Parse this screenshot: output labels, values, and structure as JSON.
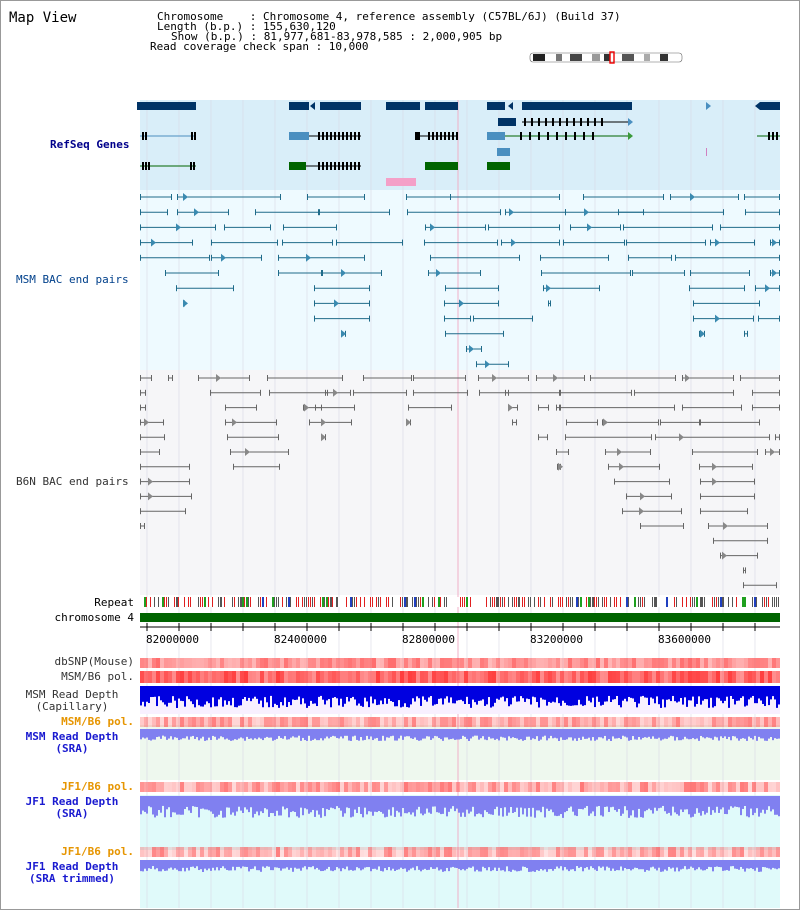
{
  "title": "Map View",
  "info": {
    "chromosome": "Chromosome    : Chromosome 4, reference assembly (C57BL/6J) (Build 37)",
    "length": "Length (b.p.) : 155,630,120",
    "show": "Show (b.p.) : 81,977,681-83,978,585 : 2,000,905 bp",
    "read_span": "Read coverage check span : 10,000"
  },
  "tracks": {
    "refseq": "RefSeq Genes",
    "msm_bac": "MSM BAC end pairs",
    "b6n_bac": "B6N BAC end pairs",
    "repeat": "Repeat",
    "chrom": "chromosome 4",
    "dbsnp": "dbSNP(Mouse)",
    "msm_b6_pol": "MSM/B6 pol.",
    "msm_read_depth_cap_1": "MSM Read Depth",
    "msm_read_depth_cap_2": "(Capillary)",
    "msm_b6_pol_2": "MSM/B6 pol.",
    "msm_read_depth_sra_1": "MSM Read Depth",
    "msm_read_depth_sra_2": "(SRA)",
    "jf1_b6_pol": "JF1/B6 pol.",
    "jf1_read_depth_sra_1": "JF1 Read Depth",
    "jf1_read_depth_sra_2": "(SRA)",
    "jf1_b6_pol_2": "JF1/B6 pol.",
    "jf1_read_depth_trim_1": "JF1 Read Depth",
    "jf1_read_depth_trim_2": "(SRA trimmed)"
  },
  "axis": {
    "ticks": [
      "82000000",
      "82400000",
      "82800000",
      "83200000",
      "83600000"
    ]
  },
  "colors": {
    "refseq_bg": "#d9eef9",
    "bac_bg": "#eefaff",
    "gene_dark": "#003366",
    "gene_mid": "#4a8fc0",
    "gene_green": "#006400",
    "gene_pink": "#f4a0c8",
    "msm_bac": "#1f6b8a",
    "b6n_bac": "#666666",
    "chrom": "#006400",
    "snp": "#ff6060",
    "depth_cap": "#0000e0",
    "depth_sra": "#8080f0"
  }
}
